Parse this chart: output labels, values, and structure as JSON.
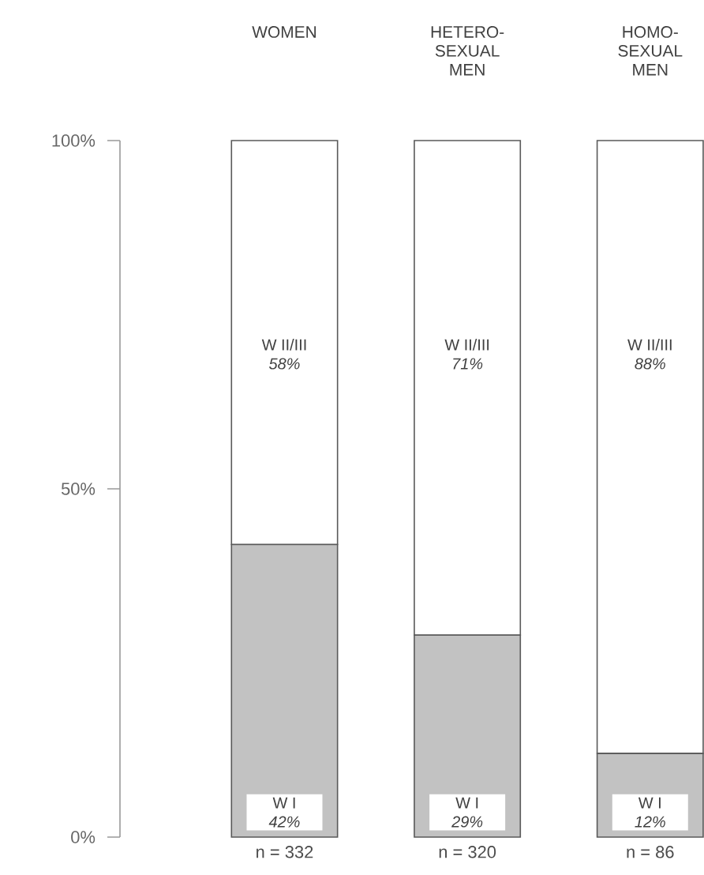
{
  "chart_data": {
    "type": "bar",
    "stacked": true,
    "categories": [
      "WOMEN",
      "HETERO-SEXUAL MEN",
      "HOMO-SEXUAL MEN"
    ],
    "series": [
      {
        "name": "W I",
        "color": "#c2c2c2",
        "values": [
          42,
          29,
          12
        ],
        "value_labels": [
          "42%",
          "29%",
          "12%"
        ]
      },
      {
        "name": "W II/III",
        "color": "#ffffff",
        "values": [
          58,
          71,
          88
        ],
        "value_labels": [
          "58%",
          "71%",
          "88%"
        ]
      }
    ],
    "ylim": [
      0,
      100
    ],
    "yticks": [
      {
        "value": 0,
        "label": "0%"
      },
      {
        "value": 50,
        "label": "50%"
      },
      {
        "value": 100,
        "label": "100%"
      }
    ],
    "annotations": [
      "n = 332",
      "n = 320",
      "n = 86"
    ],
    "legend": false,
    "grid": false
  }
}
